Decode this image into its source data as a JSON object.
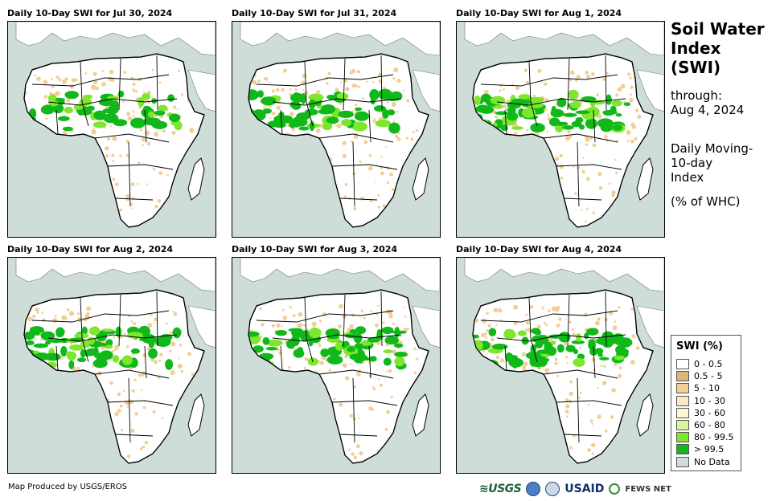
{
  "panels": [
    {
      "title": "Daily 10-Day SWI for Jul 30, 2024",
      "green_fraction": 0.55
    },
    {
      "title": "Daily 10-Day SWI for Jul 31, 2024",
      "green_fraction": 0.75
    },
    {
      "title": "Daily 10-Day SWI for Aug 1, 2024",
      "green_fraction": 0.8
    },
    {
      "title": "Daily 10-Day SWI for Aug 2, 2024",
      "green_fraction": 0.8
    },
    {
      "title": "Daily 10-Day SWI for Aug 3, 2024",
      "green_fraction": 0.8
    },
    {
      "title": "Daily 10-Day SWI for Aug 4, 2024",
      "green_fraction": 0.7
    }
  ],
  "side": {
    "title_line1": "Soil Water",
    "title_line2": "Index",
    "title_line3": "(SWI)",
    "through_label": "through:",
    "through_date": "Aug 4, 2024",
    "desc_line1": "Daily Moving-",
    "desc_line2": "10-day",
    "desc_line3": "Index",
    "units": "(% of WHC)"
  },
  "legend": {
    "title": "SWI (%)",
    "items": [
      {
        "label": "0 - 0.5",
        "color": "#ffffff"
      },
      {
        "label": "0.5 - 5",
        "color": "#d9b77a"
      },
      {
        "label": "5 - 10",
        "color": "#f1cf96"
      },
      {
        "label": "10 - 30",
        "color": "#fce8c4"
      },
      {
        "label": "30 - 60",
        "color": "#fdf8d2"
      },
      {
        "label": "60 - 80",
        "color": "#ddf59a"
      },
      {
        "label": "80 - 99.5",
        "color": "#7ee62c"
      },
      {
        "label": "> 99.5",
        "color": "#10b81a"
      },
      {
        "label": "No Data",
        "color": "#cfddd8"
      }
    ]
  },
  "footer": {
    "credit": "Map Produced by USGS/EROS",
    "usgs": "≋USGS",
    "usaid": "USAID",
    "fews": "FEWS NET"
  },
  "colors": {
    "ocean": "#cfddd8",
    "land": "#ffffff",
    "green_dark": "#10b81a",
    "green_light": "#7ee62c",
    "tan": "#f1cf96",
    "border": "#000000"
  }
}
